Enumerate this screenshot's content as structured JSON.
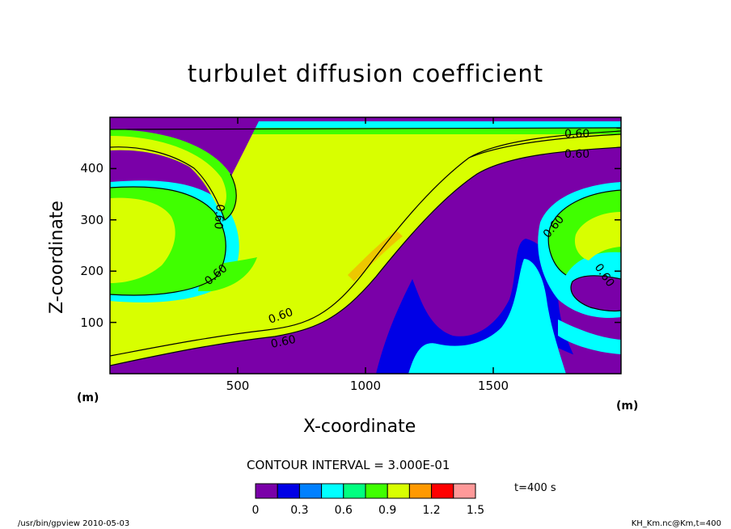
{
  "chart_data": {
    "type": "heatmap",
    "title": "turbulet diffusion coefficient",
    "xlabel": "X-coordinate",
    "ylabel": "Z-coordinate",
    "x_unit": "(m)",
    "y_unit": "(m)",
    "xlim": [
      0,
      2000
    ],
    "ylim": [
      0,
      500
    ],
    "x_ticks": [
      500,
      1000,
      1500
    ],
    "y_ticks": [
      100,
      200,
      300,
      400
    ],
    "contour_interval_text": "CONTOUR INTERVAL = 3.000E-01",
    "contour_value": 0.6,
    "contour_label": "0.60",
    "levels": [
      0,
      0.3,
      0.6,
      0.9,
      1.2,
      1.5
    ],
    "level_labels": [
      "0",
      "0.3",
      "0.6",
      "0.9",
      "1.2",
      "1.5"
    ],
    "color_bands": [
      "#7a00a8",
      "#0000e6",
      "#0080ff",
      "#00ffff",
      "#00ff80",
      "#40ff00",
      "#d8ff00",
      "#ff9900",
      "#ff0000",
      "#ff9999"
    ],
    "time_label": "t=400 s",
    "grid": false
  },
  "footer": {
    "left": "/usr/bin/gpview  2010-05-03",
    "right": "KH_Km.nc@Km,t=400"
  }
}
